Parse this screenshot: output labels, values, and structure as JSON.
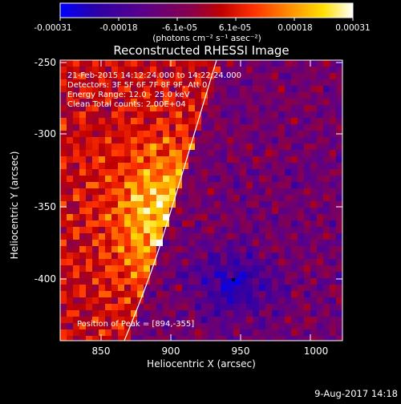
{
  "colorbar": {
    "ticks": [
      "-0.00031",
      "-0.00018",
      "-6.1e-05",
      "6.1e-05",
      "0.00018",
      "0.00031"
    ],
    "unit_label": "(photons cm⁻² s⁻¹ asec⁻²)",
    "stops": [
      "#0000ff",
      "#2a00a8",
      "#5a008a",
      "#8a004a",
      "#c00000",
      "#ff3000",
      "#ff8a00",
      "#ffe000",
      "#ffffff"
    ]
  },
  "title": "Reconstructed RHESSI Image",
  "info": {
    "line1": "21-Feb-2015 14:12:24.000 to 14:22:24.000",
    "line2": "Detectors: 3F 5F 6F 7F 8F 9F, Att 0",
    "line3": "Energy Range: 12.0 - 25.0 keV",
    "line4": "Clean     Total counts: 2.00E+04"
  },
  "peak_label": "Position of Peak = [894,-355]",
  "axes": {
    "x_label": "Heliocentric X (arcsec)",
    "y_label": "Heliocentric Y (arcsec)",
    "x_ticks": [
      "850",
      "900",
      "950",
      "1000"
    ],
    "y_ticks": [
      "-250",
      "-300",
      "-350",
      "-400"
    ]
  },
  "footer": {
    "timestamp": "9-Aug-2017 14:18"
  }
}
